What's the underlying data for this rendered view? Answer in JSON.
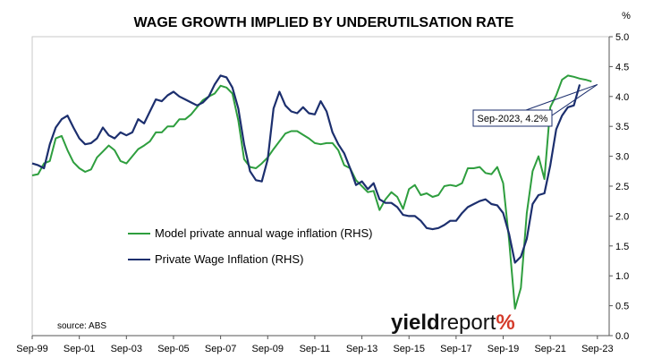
{
  "chart_data": {
    "type": "line",
    "title": "WAGE GROWTH IMPLIED BY UNDERUTILSATION RATE",
    "y_unit": "%",
    "y_axis_side": "right",
    "ylim": [
      0.0,
      5.0
    ],
    "y_ticks": [
      "0.0",
      "0.5",
      "1.0",
      "1.5",
      "2.0",
      "2.5",
      "3.0",
      "3.5",
      "4.0",
      "4.5",
      "5.0"
    ],
    "x_ticks": [
      "Sep-99",
      "Sep-01",
      "Sep-03",
      "Sep-05",
      "Sep-07",
      "Sep-09",
      "Sep-11",
      "Sep-13",
      "Sep-15",
      "Sep-17",
      "Sep-19",
      "Sep-21",
      "Sep-23"
    ],
    "xlim": [
      1999.67,
      2024.17
    ],
    "grid": false,
    "legend_position": "center-left",
    "source": "source: ABS",
    "watermark": "yieldreport%",
    "annotation": {
      "text": "Sep-2023, 4.2%",
      "x": 2023.67,
      "y": 4.2
    },
    "series": [
      {
        "name": "Model private annual wage inflation (RHS)",
        "color": "#2e9e3e",
        "points": [
          [
            1999.67,
            2.68
          ],
          [
            1999.92,
            2.7
          ],
          [
            2000.17,
            2.88
          ],
          [
            2000.42,
            2.92
          ],
          [
            2000.67,
            3.3
          ],
          [
            2000.92,
            3.34
          ],
          [
            2001.17,
            3.1
          ],
          [
            2001.42,
            2.9
          ],
          [
            2001.67,
            2.8
          ],
          [
            2001.92,
            2.74
          ],
          [
            2002.17,
            2.78
          ],
          [
            2002.42,
            2.98
          ],
          [
            2002.67,
            3.08
          ],
          [
            2002.92,
            3.18
          ],
          [
            2003.17,
            3.1
          ],
          [
            2003.42,
            2.92
          ],
          [
            2003.67,
            2.88
          ],
          [
            2003.92,
            3.0
          ],
          [
            2004.17,
            3.12
          ],
          [
            2004.42,
            3.18
          ],
          [
            2004.67,
            3.25
          ],
          [
            2004.92,
            3.4
          ],
          [
            2005.17,
            3.4
          ],
          [
            2005.42,
            3.5
          ],
          [
            2005.67,
            3.5
          ],
          [
            2005.92,
            3.62
          ],
          [
            2006.17,
            3.62
          ],
          [
            2006.42,
            3.7
          ],
          [
            2006.67,
            3.82
          ],
          [
            2006.92,
            3.94
          ],
          [
            2007.17,
            4.0
          ],
          [
            2007.42,
            4.05
          ],
          [
            2007.67,
            4.18
          ],
          [
            2007.92,
            4.15
          ],
          [
            2008.17,
            4.05
          ],
          [
            2008.42,
            3.6
          ],
          [
            2008.67,
            2.95
          ],
          [
            2008.92,
            2.82
          ],
          [
            2009.17,
            2.8
          ],
          [
            2009.42,
            2.88
          ],
          [
            2009.67,
            2.98
          ],
          [
            2009.92,
            3.12
          ],
          [
            2010.17,
            3.25
          ],
          [
            2010.42,
            3.38
          ],
          [
            2010.67,
            3.42
          ],
          [
            2010.92,
            3.42
          ],
          [
            2011.17,
            3.36
          ],
          [
            2011.42,
            3.3
          ],
          [
            2011.67,
            3.22
          ],
          [
            2011.92,
            3.2
          ],
          [
            2012.17,
            3.22
          ],
          [
            2012.42,
            3.22
          ],
          [
            2012.67,
            3.1
          ],
          [
            2012.92,
            2.85
          ],
          [
            2013.17,
            2.8
          ],
          [
            2013.42,
            2.6
          ],
          [
            2013.67,
            2.5
          ],
          [
            2013.92,
            2.4
          ],
          [
            2014.17,
            2.42
          ],
          [
            2014.42,
            2.1
          ],
          [
            2014.67,
            2.28
          ],
          [
            2014.92,
            2.4
          ],
          [
            2015.17,
            2.32
          ],
          [
            2015.42,
            2.12
          ],
          [
            2015.67,
            2.45
          ],
          [
            2015.92,
            2.52
          ],
          [
            2016.17,
            2.35
          ],
          [
            2016.42,
            2.38
          ],
          [
            2016.67,
            2.32
          ],
          [
            2016.92,
            2.35
          ],
          [
            2017.17,
            2.5
          ],
          [
            2017.42,
            2.52
          ],
          [
            2017.67,
            2.5
          ],
          [
            2017.92,
            2.55
          ],
          [
            2018.17,
            2.8
          ],
          [
            2018.42,
            2.8
          ],
          [
            2018.67,
            2.82
          ],
          [
            2018.92,
            2.72
          ],
          [
            2019.17,
            2.7
          ],
          [
            2019.42,
            2.82
          ],
          [
            2019.67,
            2.55
          ],
          [
            2019.92,
            1.6
          ],
          [
            2020.17,
            0.45
          ],
          [
            2020.42,
            0.8
          ],
          [
            2020.67,
            2.05
          ],
          [
            2020.92,
            2.75
          ],
          [
            2021.17,
            3.0
          ],
          [
            2021.42,
            2.62
          ],
          [
            2021.67,
            3.82
          ],
          [
            2021.92,
            4.02
          ],
          [
            2022.17,
            4.28
          ],
          [
            2022.42,
            4.35
          ],
          [
            2022.67,
            4.33
          ],
          [
            2022.92,
            4.3
          ],
          [
            2023.17,
            4.28
          ],
          [
            2023.42,
            4.25
          ]
        ]
      },
      {
        "name": "Private Wage Inflation (RHS)",
        "color": "#1c2f6e",
        "points": [
          [
            1999.67,
            2.88
          ],
          [
            1999.92,
            2.85
          ],
          [
            2000.17,
            2.8
          ],
          [
            2000.42,
            3.2
          ],
          [
            2000.67,
            3.48
          ],
          [
            2000.92,
            3.62
          ],
          [
            2001.17,
            3.68
          ],
          [
            2001.42,
            3.48
          ],
          [
            2001.67,
            3.3
          ],
          [
            2001.92,
            3.2
          ],
          [
            2002.17,
            3.22
          ],
          [
            2002.42,
            3.3
          ],
          [
            2002.67,
            3.48
          ],
          [
            2002.92,
            3.35
          ],
          [
            2003.17,
            3.3
          ],
          [
            2003.42,
            3.4
          ],
          [
            2003.67,
            3.35
          ],
          [
            2003.92,
            3.4
          ],
          [
            2004.17,
            3.62
          ],
          [
            2004.42,
            3.55
          ],
          [
            2004.67,
            3.75
          ],
          [
            2004.92,
            3.95
          ],
          [
            2005.17,
            3.92
          ],
          [
            2005.42,
            4.02
          ],
          [
            2005.67,
            4.08
          ],
          [
            2005.92,
            4.0
          ],
          [
            2006.17,
            3.95
          ],
          [
            2006.42,
            3.9
          ],
          [
            2006.67,
            3.85
          ],
          [
            2006.92,
            3.9
          ],
          [
            2007.17,
            4.0
          ],
          [
            2007.42,
            4.2
          ],
          [
            2007.67,
            4.35
          ],
          [
            2007.92,
            4.32
          ],
          [
            2008.17,
            4.15
          ],
          [
            2008.42,
            3.8
          ],
          [
            2008.67,
            3.2
          ],
          [
            2008.92,
            2.75
          ],
          [
            2009.17,
            2.6
          ],
          [
            2009.42,
            2.58
          ],
          [
            2009.67,
            2.95
          ],
          [
            2009.92,
            3.8
          ],
          [
            2010.17,
            4.08
          ],
          [
            2010.42,
            3.85
          ],
          [
            2010.67,
            3.75
          ],
          [
            2010.92,
            3.72
          ],
          [
            2011.17,
            3.82
          ],
          [
            2011.42,
            3.72
          ],
          [
            2011.67,
            3.7
          ],
          [
            2011.92,
            3.92
          ],
          [
            2012.17,
            3.75
          ],
          [
            2012.42,
            3.4
          ],
          [
            2012.67,
            3.2
          ],
          [
            2012.92,
            3.05
          ],
          [
            2013.17,
            2.8
          ],
          [
            2013.42,
            2.52
          ],
          [
            2013.67,
            2.58
          ],
          [
            2013.92,
            2.45
          ],
          [
            2014.17,
            2.55
          ],
          [
            2014.42,
            2.28
          ],
          [
            2014.67,
            2.22
          ],
          [
            2014.92,
            2.22
          ],
          [
            2015.17,
            2.15
          ],
          [
            2015.42,
            2.02
          ],
          [
            2015.67,
            2.0
          ],
          [
            2015.92,
            2.0
          ],
          [
            2016.17,
            1.92
          ],
          [
            2016.42,
            1.8
          ],
          [
            2016.67,
            1.78
          ],
          [
            2016.92,
            1.8
          ],
          [
            2017.17,
            1.85
          ],
          [
            2017.42,
            1.92
          ],
          [
            2017.67,
            1.92
          ],
          [
            2017.92,
            2.05
          ],
          [
            2018.17,
            2.15
          ],
          [
            2018.42,
            2.2
          ],
          [
            2018.67,
            2.25
          ],
          [
            2018.92,
            2.28
          ],
          [
            2019.17,
            2.2
          ],
          [
            2019.42,
            2.18
          ],
          [
            2019.67,
            2.05
          ],
          [
            2019.92,
            1.7
          ],
          [
            2020.17,
            1.22
          ],
          [
            2020.42,
            1.32
          ],
          [
            2020.67,
            1.62
          ],
          [
            2020.92,
            2.2
          ],
          [
            2021.17,
            2.35
          ],
          [
            2021.42,
            2.38
          ],
          [
            2021.67,
            2.85
          ],
          [
            2021.92,
            3.45
          ],
          [
            2022.17,
            3.68
          ],
          [
            2022.42,
            3.82
          ],
          [
            2022.67,
            3.85
          ],
          [
            2022.92,
            4.2
          ]
        ]
      }
    ]
  }
}
